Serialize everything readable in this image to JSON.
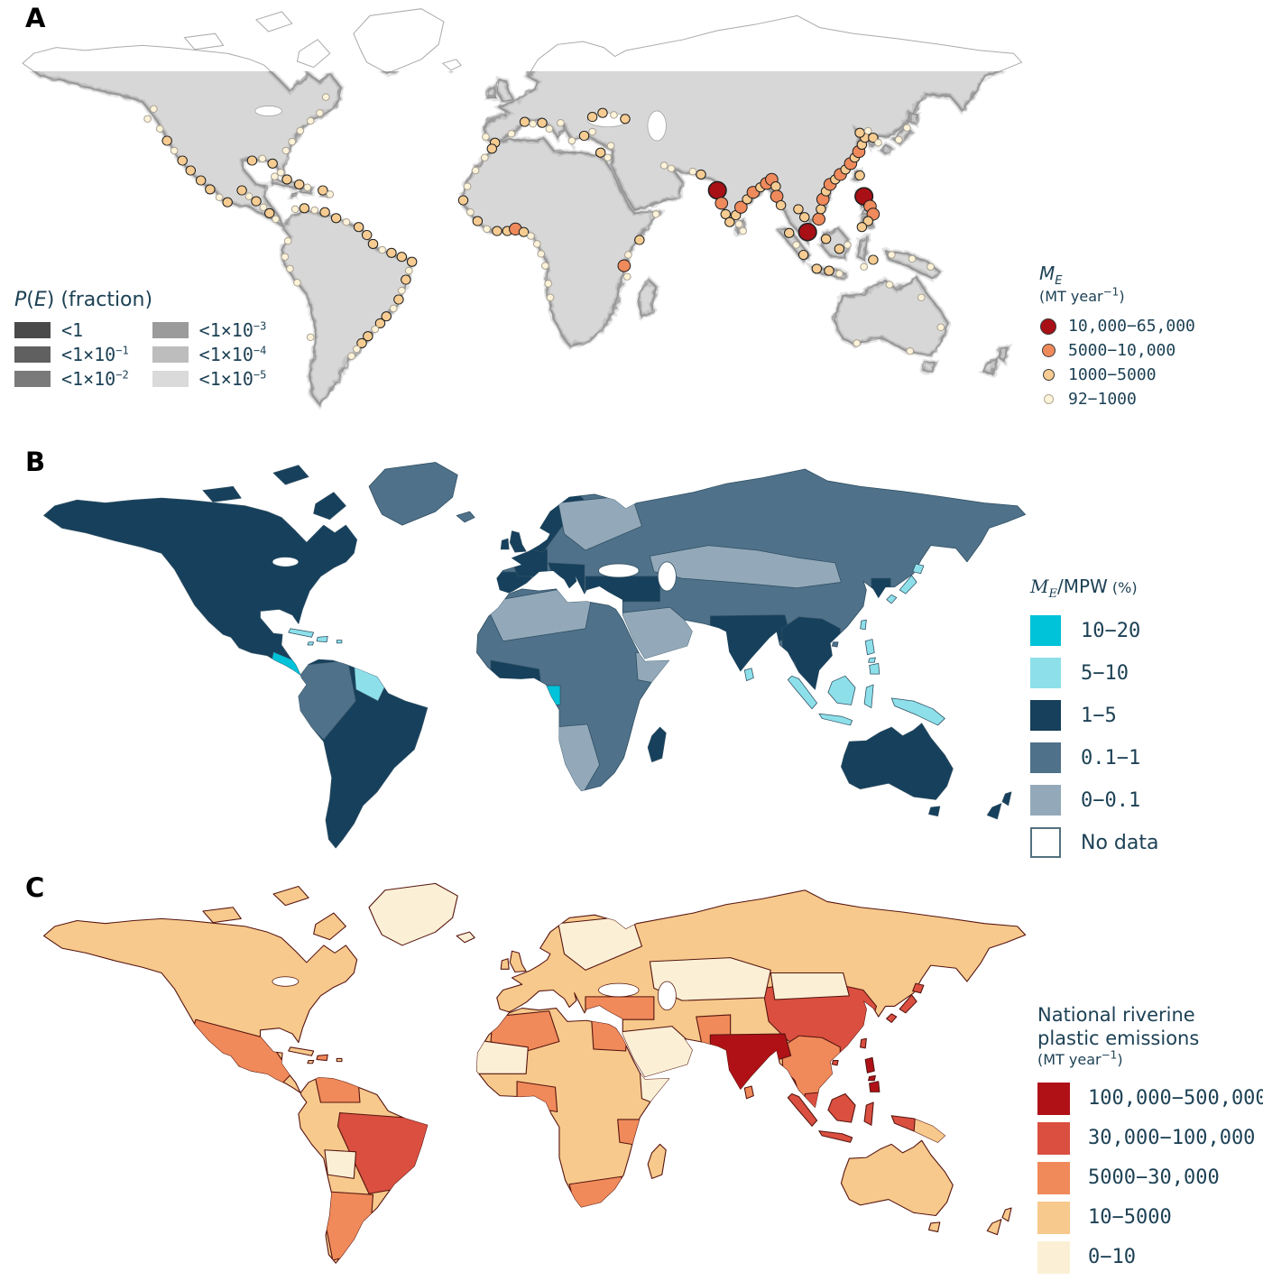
{
  "text_color": "#1d4155",
  "panel_a": {
    "label": "A",
    "pe_legend": {
      "title_p": "P",
      "title_open": "(",
      "title_e": "E",
      "title_close": ")",
      "title_suffix": " (fraction)",
      "columns": [
        [
          {
            "label": "<1",
            "exp": "",
            "color": "#4a4a4a"
          },
          {
            "label": "<1×10",
            "exp": "−1",
            "color": "#606060"
          },
          {
            "label": "<1×10",
            "exp": "−2",
            "color": "#7a7a7a"
          }
        ],
        [
          {
            "label": "<1×10",
            "exp": "−3",
            "color": "#9b9b9b"
          },
          {
            "label": "<1×10",
            "exp": "−4",
            "color": "#bdbdbd"
          },
          {
            "label": "<1×10",
            "exp": "−5",
            "color": "#dadada"
          }
        ]
      ]
    },
    "me_legend": {
      "title_m": "M",
      "title_sub": "E",
      "units_pre": "(MT year",
      "units_exp": "−1",
      "units_post": ")",
      "items": [
        {
          "label": "10,000−65,000",
          "color": "#a81016",
          "d": 16
        },
        {
          "label": "5000−10,000",
          "color": "#ef8a5c",
          "d": 13
        },
        {
          "label": "1000−5000",
          "color": "#f6cc92",
          "d": 11
        },
        {
          "label": "92−1000",
          "color": "#fdf3d8",
          "d": 9
        }
      ]
    },
    "map": {
      "land_color": "#d7d7d7",
      "coast_color": "#7e7e7e",
      "outline_color": "#ababab",
      "sea_border": "#9a9a9a",
      "dot_colors": [
        "#fdf3d8",
        "#f6cc92",
        "#ef8a5c",
        "#a81016"
      ],
      "dot_radii": [
        3.4,
        4.6,
        6,
        8.6
      ],
      "dots": [
        [
          150,
          108,
          0
        ],
        [
          144,
          118,
          0
        ],
        [
          156,
          128,
          0
        ],
        [
          163,
          140,
          1
        ],
        [
          170,
          150,
          0
        ],
        [
          178,
          160,
          1
        ],
        [
          186,
          170,
          1
        ],
        [
          196,
          180,
          1
        ],
        [
          205,
          189,
          1
        ],
        [
          214,
          197,
          0
        ],
        [
          222,
          202,
          1
        ],
        [
          236,
          190,
          1
        ],
        [
          243,
          196,
          0
        ],
        [
          250,
          201,
          1
        ],
        [
          257,
          207,
          0
        ],
        [
          263,
          213,
          1
        ],
        [
          269,
          219,
          0
        ],
        [
          268,
          176,
          0
        ],
        [
          280,
          179,
          1
        ],
        [
          292,
          184,
          1
        ],
        [
          300,
          187,
          0
        ],
        [
          315,
          190,
          1
        ],
        [
          322,
          194,
          0
        ],
        [
          246,
          160,
          1
        ],
        [
          256,
          158,
          0
        ],
        [
          266,
          163,
          1
        ],
        [
          274,
          172,
          0
        ],
        [
          279,
          150,
          0
        ],
        [
          285,
          141,
          0
        ],
        [
          293,
          130,
          0
        ],
        [
          303,
          120,
          0
        ],
        [
          312,
          112,
          0
        ],
        [
          318,
          96,
          0
        ],
        [
          288,
          209,
          0
        ],
        [
          297,
          208,
          1
        ],
        [
          307,
          210,
          0
        ],
        [
          317,
          212,
          1
        ],
        [
          328,
          218,
          1
        ],
        [
          338,
          222,
          0
        ],
        [
          350,
          227,
          1
        ],
        [
          358,
          235,
          1
        ],
        [
          364,
          244,
          1
        ],
        [
          373,
          250,
          0
        ],
        [
          382,
          253,
          1
        ],
        [
          392,
          257,
          1
        ],
        [
          402,
          262,
          1
        ],
        [
          399,
          271,
          0
        ],
        [
          396,
          280,
          1
        ],
        [
          392,
          291,
          0
        ],
        [
          389,
          300,
          1
        ],
        [
          384,
          309,
          0
        ],
        [
          377,
          317,
          1
        ],
        [
          371,
          324,
          1
        ],
        [
          366,
          330,
          0
        ],
        [
          359,
          337,
          1
        ],
        [
          353,
          344,
          1
        ],
        [
          348,
          350,
          0
        ],
        [
          343,
          357,
          0
        ],
        [
          290,
          283,
          0
        ],
        [
          283,
          269,
          0
        ],
        [
          278,
          257,
          0
        ],
        [
          281,
          241,
          0
        ],
        [
          303,
          338,
          0
        ],
        [
          474,
          136,
          0
        ],
        [
          483,
          142,
          1
        ],
        [
          499,
          133,
          0
        ],
        [
          512,
          121,
          1
        ],
        [
          520,
          123,
          0
        ],
        [
          529,
          122,
          1
        ],
        [
          536,
          128,
          0
        ],
        [
          547,
          122,
          0
        ],
        [
          558,
          140,
          0
        ],
        [
          570,
          135,
          1
        ],
        [
          578,
          131,
          0
        ],
        [
          578,
          116,
          1
        ],
        [
          588,
          112,
          1
        ],
        [
          599,
          114,
          0
        ],
        [
          610,
          118,
          1
        ],
        [
          586,
          152,
          1
        ],
        [
          593,
          157,
          0
        ],
        [
          596,
          145,
          0
        ],
        [
          480,
          148,
          1
        ],
        [
          473,
          157,
          0
        ],
        [
          464,
          170,
          0
        ],
        [
          456,
          186,
          0
        ],
        [
          452,
          200,
          1
        ],
        [
          459,
          212,
          0
        ],
        [
          466,
          221,
          1
        ],
        [
          475,
          229,
          0
        ],
        [
          485,
          231,
          1
        ],
        [
          495,
          231,
          1
        ],
        [
          503,
          229,
          2
        ],
        [
          511,
          232,
          1
        ],
        [
          518,
          236,
          0
        ],
        [
          524,
          244,
          0
        ],
        [
          528,
          254,
          0
        ],
        [
          532,
          266,
          0
        ],
        [
          535,
          284,
          0
        ],
        [
          537,
          298,
          0
        ],
        [
          609,
          266,
          2
        ],
        [
          613,
          255,
          0
        ],
        [
          612,
          277,
          0
        ],
        [
          624,
          240,
          1
        ],
        [
          640,
          214,
          0
        ],
        [
          655,
          168,
          0
        ],
        [
          648,
          165,
          0
        ],
        [
          684,
          174,
          1
        ],
        [
          676,
          171,
          0
        ],
        [
          700,
          190,
          3
        ],
        [
          704,
          203,
          2
        ],
        [
          708,
          214,
          1
        ],
        [
          712,
          222,
          1
        ],
        [
          718,
          215,
          1
        ],
        [
          723,
          207,
          2
        ],
        [
          729,
          199,
          1
        ],
        [
          735,
          192,
          2
        ],
        [
          742,
          187,
          1
        ],
        [
          748,
          183,
          2
        ],
        [
          753,
          179,
          2
        ],
        [
          757,
          186,
          1
        ],
        [
          721,
          224,
          0
        ],
        [
          725,
          231,
          0
        ],
        [
          758,
          196,
          2
        ],
        [
          762,
          205,
          1
        ],
        [
          779,
          209,
          1
        ],
        [
          785,
          217,
          1
        ],
        [
          788,
          232,
          3
        ],
        [
          770,
          233,
          1
        ],
        [
          777,
          245,
          0
        ],
        [
          784,
          255,
          1
        ],
        [
          797,
          269,
          1
        ],
        [
          809,
          271,
          1
        ],
        [
          819,
          274,
          0
        ],
        [
          806,
          239,
          1
        ],
        [
          819,
          249,
          1
        ],
        [
          827,
          245,
          0
        ],
        [
          799,
          219,
          2
        ],
        [
          801,
          209,
          1
        ],
        [
          803,
          199,
          2
        ],
        [
          806,
          191,
          1
        ],
        [
          810,
          184,
          2
        ],
        [
          815,
          179,
          1
        ],
        [
          820,
          174,
          2
        ],
        [
          825,
          169,
          1
        ],
        [
          830,
          163,
          2
        ],
        [
          834,
          157,
          1
        ],
        [
          838,
          151,
          2
        ],
        [
          841,
          144,
          1
        ],
        [
          844,
          137,
          1
        ],
        [
          839,
          132,
          1
        ],
        [
          847,
          130,
          0
        ],
        [
          852,
          137,
          1
        ],
        [
          857,
          142,
          0
        ],
        [
          877,
          139,
          0
        ],
        [
          885,
          127,
          0
        ],
        [
          839,
          175,
          1
        ],
        [
          843,
          196,
          3
        ],
        [
          849,
          206,
          2
        ],
        [
          852,
          214,
          2
        ],
        [
          847,
          221,
          1
        ],
        [
          841,
          227,
          1
        ],
        [
          852,
          260,
          1
        ],
        [
          843,
          267,
          0
        ],
        [
          870,
          255,
          0
        ],
        [
          890,
          259,
          0
        ],
        [
          908,
          267,
          0
        ],
        [
          868,
          285,
          0
        ],
        [
          899,
          298,
          0
        ],
        [
          918,
          328,
          0
        ],
        [
          888,
          352,
          0
        ],
        [
          836,
          344,
          0
        ]
      ]
    }
  },
  "panel_b": {
    "label": "B",
    "legend": {
      "title_m": "M",
      "title_sub": "E",
      "title_rest": "/MPW",
      "title_pct": " (%)",
      "items": [
        {
          "label": "10−20",
          "class": "cyan"
        },
        {
          "label": "5−10",
          "class": "lightcyan"
        },
        {
          "label": "1−5",
          "class": "navy"
        },
        {
          "label": "0.1−1",
          "class": "slate"
        },
        {
          "label": "0−0.1",
          "class": "gray"
        },
        {
          "label": "No data",
          "class": "nodata"
        }
      ]
    },
    "palette": {
      "cyan": "#00c2d8",
      "lightcyan": "#8de0ea",
      "navy": "#16405c",
      "slate": "#4f7189",
      "gray": "#93a9b9",
      "nodata": "#ffffff",
      "border": "#2f4f63"
    },
    "region_fills": {
      "na": "navy",
      "ai1": "navy",
      "ai2": "navy",
      "ai3": "navy",
      "greenland": "slate",
      "sa": "navy",
      "africa": "slate",
      "madagascar": "navy",
      "eurasia": "slate",
      "uk": "navy",
      "ireland": "navy",
      "iceland": "slate",
      "japan1": "lightcyan",
      "japan2": "lightcyan",
      "japan3": "lightcyan",
      "srilanka": "lightcyan",
      "taiwan": "lightcyan",
      "hainan": "slate",
      "sumatra": "lightcyan",
      "java": "lightcyan",
      "borneo": "lightcyan",
      "sulawesi": "lightcyan",
      "newguinea": "lightcyan",
      "luzon": "lightcyan",
      "visayas": "lightcyan",
      "mindanao": "lightcyan",
      "australia": "navy",
      "tasmania": "navy",
      "nz1": "navy",
      "nz2": "navy",
      "cuba": "lightcyan",
      "hispaniola": "lightcyan",
      "pr": "lightcyan",
      "jamaica": "lightcyan"
    },
    "overlay_fills": {
      "central_america": "cyan",
      "nw_south_america": "slate",
      "guianas": "lightcyan",
      "north_africa": "gray",
      "west_africa": "navy",
      "gabon": "cyan",
      "sw_africa": "gray",
      "horn_africa": "gray",
      "iberia": "navy",
      "france": "navy",
      "italy": "navy",
      "turkey_greece": "navy",
      "norway": "navy",
      "sweden_finland": "gray",
      "central_asia": "gray",
      "arabia": "gray",
      "india": "navy",
      "indochina": "navy",
      "korea": "navy"
    }
  },
  "panel_c": {
    "label": "C",
    "legend": {
      "title_line1": "National riverine",
      "title_line2": "plastic emissions",
      "units_pre": "(MT year",
      "units_exp": "−1",
      "units_post": ")",
      "items": [
        {
          "label": "100,000−500,000",
          "class": "darkred"
        },
        {
          "label": "30,000−100,000",
          "class": "red"
        },
        {
          "label": "5000−30,000",
          "class": "orange"
        },
        {
          "label": "10−5000",
          "class": "tan"
        },
        {
          "label": "0−10",
          "class": "cream"
        }
      ]
    },
    "palette": {
      "darkred": "#b01117",
      "red": "#da4f40",
      "orange": "#f08a5a",
      "tan": "#f7c98c",
      "cream": "#fbf0d6",
      "border": "#571510"
    },
    "region_fills": {
      "na": "tan",
      "ai1": "tan",
      "ai2": "tan",
      "ai3": "tan",
      "greenland": "cream",
      "sa": "tan",
      "africa": "tan",
      "madagascar": "tan",
      "eurasia": "tan",
      "uk": "tan",
      "ireland": "tan",
      "iceland": "cream",
      "japan1": "red",
      "japan2": "red",
      "japan3": "red",
      "srilanka": "orange",
      "taiwan": "red",
      "hainan": "red",
      "sumatra": "red",
      "java": "red",
      "borneo": "red",
      "sulawesi": "red",
      "newguinea": "red",
      "luzon": "darkred",
      "visayas": "darkred",
      "mindanao": "darkred",
      "australia": "tan",
      "tasmania": "tan",
      "nz1": "tan",
      "nz2": "tan",
      "cuba": "tan",
      "hispaniola": "orange",
      "pr": "tan",
      "jamaica": "tan"
    },
    "overlay_fills": {
      "mexico": "orange",
      "brazil": "red",
      "venezuela": "orange",
      "argentina": "orange",
      "bolivia": "cream",
      "algeria": "orange",
      "egypt": "orange",
      "sahel": "cream",
      "gulf_of_guinea": "orange",
      "tanzania": "orange",
      "south_africa": "orange",
      "somalia": "cream",
      "china": "red",
      "mongolia": "cream",
      "kazakhstan": "cream",
      "arabia": "cream",
      "turkey": "orange",
      "pakistan": "orange",
      "scandinavia": "cream",
      "indochina": "orange",
      "malaysia": "red",
      "india": "darkred",
      "png_east": "tan"
    }
  }
}
